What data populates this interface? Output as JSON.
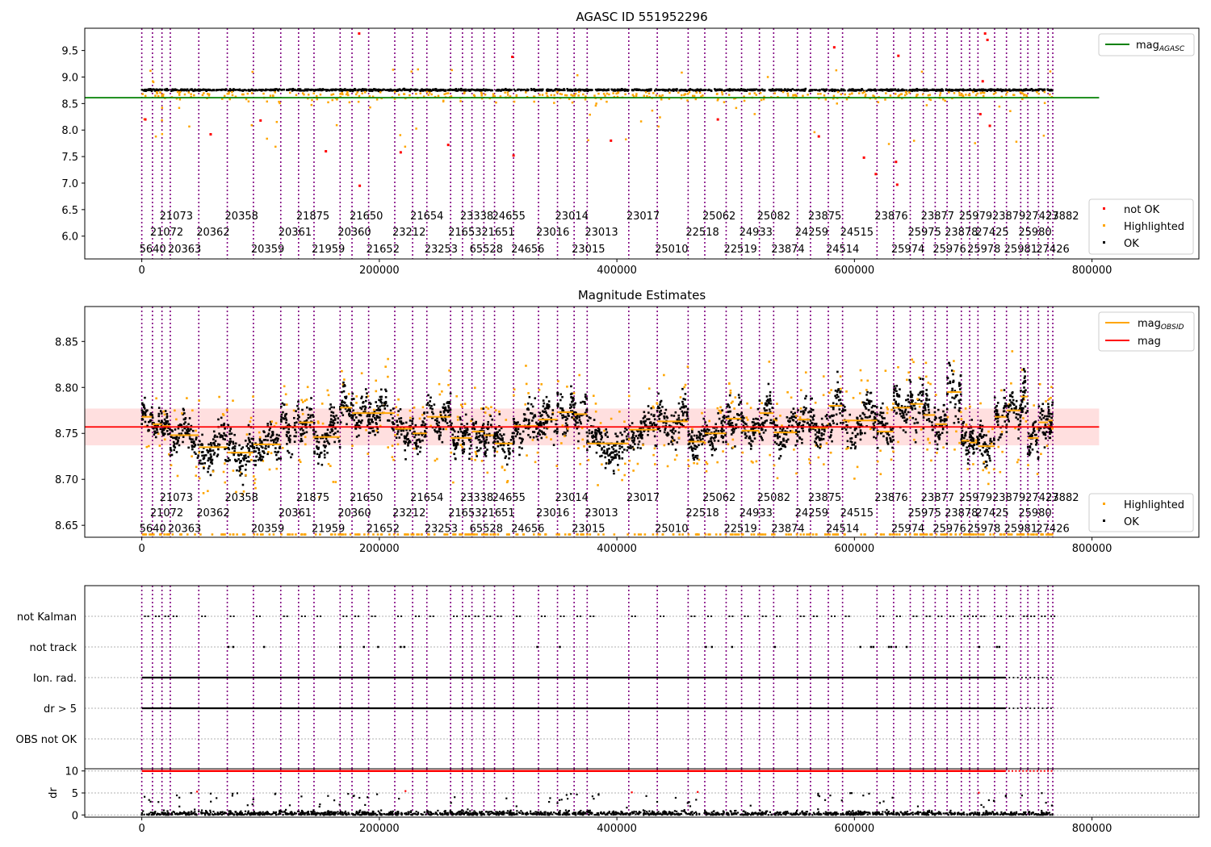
{
  "colors": {
    "not_ok": "#ff0000",
    "highlighted": "#ffa500",
    "ok": "#000000",
    "agasc_line": "#008000",
    "obsid_line": "#ffa500",
    "mag_line": "#ff0000",
    "band": "#ffc0c0",
    "vline": "#800080"
  },
  "chart_data": [
    {
      "type": "scatter",
      "title": "AGASC ID 551952296",
      "xlim": [
        -48000,
        890000
      ],
      "ylim": [
        5.57,
        9.92
      ],
      "xticks": [
        0,
        200000,
        400000,
        600000,
        800000
      ],
      "yticks": [
        6.0,
        6.5,
        7.0,
        7.5,
        8.0,
        8.5,
        9.0,
        9.5
      ],
      "yticklabels": [
        "6.0",
        "6.5",
        "7.0",
        "7.5",
        "8.0",
        "8.5",
        "9.0",
        "9.5"
      ],
      "legend_lines": [
        {
          "label": "mag",
          "subscript": "AGASC",
          "color": "#008000"
        }
      ],
      "legend_points": [
        {
          "label": "not OK",
          "color": "#ff0000"
        },
        {
          "label": "Highlighted",
          "color": "#ffa500"
        },
        {
          "label": "OK",
          "color": "#000000"
        }
      ],
      "legend_lines_placement": "upper right",
      "legend_points_placement": "lower right",
      "hline": {
        "name": "mag_AGASC",
        "y": 8.61,
        "x_end": 806000
      },
      "obs_label_rows": [
        6.39,
        6.09,
        5.77
      ],
      "ok_band": {
        "mean": 8.755,
        "spread": 0.03,
        "y_min": 8.66
      },
      "not_ok_points": [
        {
          "x": 3000,
          "y": 8.2
        },
        {
          "x": 58000,
          "y": 7.92
        },
        {
          "x": 100000,
          "y": 8.18
        },
        {
          "x": 155000,
          "y": 7.6
        },
        {
          "x": 183000,
          "y": 9.82
        },
        {
          "x": 183500,
          "y": 6.95
        },
        {
          "x": 218000,
          "y": 7.58
        },
        {
          "x": 258000,
          "y": 7.72
        },
        {
          "x": 312000,
          "y": 9.38
        },
        {
          "x": 313000,
          "y": 7.52
        },
        {
          "x": 395000,
          "y": 7.8
        },
        {
          "x": 485000,
          "y": 8.2
        },
        {
          "x": 570000,
          "y": 7.88
        },
        {
          "x": 583000,
          "y": 9.56
        },
        {
          "x": 608000,
          "y": 7.48
        },
        {
          "x": 618000,
          "y": 7.17
        },
        {
          "x": 635000,
          "y": 7.4
        },
        {
          "x": 636000,
          "y": 6.97
        },
        {
          "x": 637000,
          "y": 9.4
        },
        {
          "x": 706000,
          "y": 8.3
        },
        {
          "x": 708000,
          "y": 8.92
        },
        {
          "x": 710000,
          "y": 9.82
        },
        {
          "x": 712000,
          "y": 9.7
        },
        {
          "x": 714000,
          "y": 8.08
        }
      ]
    },
    {
      "type": "scatter",
      "title": "Magnitude Estimates",
      "xlim": [
        -48000,
        890000
      ],
      "ylim": [
        8.637,
        8.888
      ],
      "xticks": [
        0,
        200000,
        400000,
        600000,
        800000
      ],
      "yticks": [
        8.65,
        8.7,
        8.75,
        8.8,
        8.85
      ],
      "yticklabels": [
        "8.65",
        "8.70",
        "8.75",
        "8.80",
        "8.85"
      ],
      "legend_lines": [
        {
          "label": "mag",
          "subscript": "OBSID",
          "color": "#ffa500"
        },
        {
          "label": "mag",
          "subscript": "",
          "color": "#ff0000"
        }
      ],
      "legend_points": [
        {
          "label": "Highlighted",
          "color": "#ffa500"
        },
        {
          "label": "OK",
          "color": "#000000"
        }
      ],
      "legend_lines_placement": "upper right",
      "legend_points_placement": "lower right",
      "mag": 8.757,
      "mag_band": [
        8.737,
        8.777
      ],
      "obs_label_rows": [
        8.681,
        8.664,
        8.647
      ],
      "clip_low": 8.64,
      "clip_high": 8.874,
      "obsid_segments": [
        {
          "x0": 0,
          "x1": 9000,
          "mean": 8.768,
          "amp": 0.02
        },
        {
          "x0": 9000,
          "x1": 17000,
          "mean": 8.76,
          "amp": 0.02
        },
        {
          "x0": 17000,
          "x1": 24000,
          "mean": 8.758,
          "amp": 0.02
        },
        {
          "x0": 24000,
          "x1": 48000,
          "mean": 8.748,
          "amp": 0.025
        },
        {
          "x0": 48000,
          "x1": 72000,
          "mean": 8.735,
          "amp": 0.03
        },
        {
          "x0": 72000,
          "x1": 94000,
          "mean": 8.729,
          "amp": 0.03
        },
        {
          "x0": 94000,
          "x1": 117000,
          "mean": 8.738,
          "amp": 0.025
        },
        {
          "x0": 117000,
          "x1": 132000,
          "mean": 8.757,
          "amp": 0.03
        },
        {
          "x0": 132000,
          "x1": 145000,
          "mean": 8.762,
          "amp": 0.03
        },
        {
          "x0": 145000,
          "x1": 167000,
          "mean": 8.746,
          "amp": 0.035
        },
        {
          "x0": 167000,
          "x1": 177000,
          "mean": 8.778,
          "amp": 0.03
        },
        {
          "x0": 177000,
          "x1": 191000,
          "mean": 8.772,
          "amp": 0.03
        },
        {
          "x0": 191000,
          "x1": 213000,
          "mean": 8.772,
          "amp": 0.03
        },
        {
          "x0": 213000,
          "x1": 228000,
          "mean": 8.755,
          "amp": 0.025
        },
        {
          "x0": 228000,
          "x1": 240000,
          "mean": 8.75,
          "amp": 0.025
        },
        {
          "x0": 240000,
          "x1": 260000,
          "mean": 8.768,
          "amp": 0.03
        },
        {
          "x0": 260000,
          "x1": 270000,
          "mean": 8.745,
          "amp": 0.025
        },
        {
          "x0": 270000,
          "x1": 278000,
          "mean": 8.745,
          "amp": 0.025
        },
        {
          "x0": 278000,
          "x1": 288000,
          "mean": 8.752,
          "amp": 0.025
        },
        {
          "x0": 288000,
          "x1": 297000,
          "mean": 8.748,
          "amp": 0.025
        },
        {
          "x0": 297000,
          "x1": 313000,
          "mean": 8.739,
          "amp": 0.025
        },
        {
          "x0": 313000,
          "x1": 334000,
          "mean": 8.758,
          "amp": 0.03
        },
        {
          "x0": 334000,
          "x1": 350000,
          "mean": 8.765,
          "amp": 0.03
        },
        {
          "x0": 350000,
          "x1": 364000,
          "mean": 8.773,
          "amp": 0.03
        },
        {
          "x0": 364000,
          "x1": 375000,
          "mean": 8.771,
          "amp": 0.03
        },
        {
          "x0": 375000,
          "x1": 410000,
          "mean": 8.739,
          "amp": 0.03
        },
        {
          "x0": 410000,
          "x1": 434000,
          "mean": 8.754,
          "amp": 0.025
        },
        {
          "x0": 434000,
          "x1": 460000,
          "mean": 8.763,
          "amp": 0.03
        },
        {
          "x0": 460000,
          "x1": 474000,
          "mean": 8.741,
          "amp": 0.025
        },
        {
          "x0": 474000,
          "x1": 492000,
          "mean": 8.75,
          "amp": 0.025
        },
        {
          "x0": 492000,
          "x1": 505000,
          "mean": 8.766,
          "amp": 0.03
        },
        {
          "x0": 505000,
          "x1": 520000,
          "mean": 8.753,
          "amp": 0.025
        },
        {
          "x0": 520000,
          "x1": 532000,
          "mean": 8.772,
          "amp": 0.03
        },
        {
          "x0": 532000,
          "x1": 552000,
          "mean": 8.751,
          "amp": 0.03
        },
        {
          "x0": 552000,
          "x1": 563000,
          "mean": 8.765,
          "amp": 0.03
        },
        {
          "x0": 563000,
          "x1": 578000,
          "mean": 8.756,
          "amp": 0.03
        },
        {
          "x0": 578000,
          "x1": 590000,
          "mean": 8.78,
          "amp": 0.035
        },
        {
          "x0": 590000,
          "x1": 619000,
          "mean": 8.764,
          "amp": 0.035
        },
        {
          "x0": 619000,
          "x1": 633000,
          "mean": 8.752,
          "amp": 0.03
        },
        {
          "x0": 633000,
          "x1": 647000,
          "mean": 8.778,
          "amp": 0.03
        },
        {
          "x0": 647000,
          "x1": 658000,
          "mean": 8.782,
          "amp": 0.03
        },
        {
          "x0": 658000,
          "x1": 668000,
          "mean": 8.77,
          "amp": 0.03
        },
        {
          "x0": 668000,
          "x1": 678000,
          "mean": 8.76,
          "amp": 0.03
        },
        {
          "x0": 678000,
          "x1": 690000,
          "mean": 8.795,
          "amp": 0.04
        },
        {
          "x0": 690000,
          "x1": 697000,
          "mean": 8.742,
          "amp": 0.025
        },
        {
          "x0": 697000,
          "x1": 704000,
          "mean": 8.74,
          "amp": 0.025
        },
        {
          "x0": 704000,
          "x1": 718000,
          "mean": 8.736,
          "amp": 0.025
        },
        {
          "x0": 718000,
          "x1": 728000,
          "mean": 8.768,
          "amp": 0.03
        },
        {
          "x0": 728000,
          "x1": 740000,
          "mean": 8.775,
          "amp": 0.03
        },
        {
          "x0": 740000,
          "x1": 746000,
          "mean": 8.79,
          "amp": 0.035
        },
        {
          "x0": 746000,
          "x1": 755000,
          "mean": 8.745,
          "amp": 0.025
        },
        {
          "x0": 755000,
          "x1": 763000,
          "mean": 8.762,
          "amp": 0.025
        },
        {
          "x0": 763000,
          "x1": 767000,
          "mean": 8.764,
          "amp": 0.025
        }
      ]
    },
    {
      "type": "scatter",
      "title": "",
      "xlim": [
        -48000,
        890000
      ],
      "categories": [
        "not Kalman",
        "not track",
        "Ion. rad.",
        "dr > 5",
        "OBS not OK"
      ],
      "ion_rad_end": 727000,
      "not_track_x": [
        73000,
        77000,
        103000,
        167000,
        187000,
        199000,
        218000,
        221000,
        333000,
        352000,
        475000,
        480000,
        497000,
        533000,
        605000,
        614000,
        616000,
        629000,
        631000,
        635000,
        644000,
        705000,
        720000,
        722000
      ]
    },
    {
      "type": "scatter",
      "title": "",
      "ylabel": "dr",
      "xlim": [
        -48000,
        890000
      ],
      "ylim": [
        -0.5,
        10.5
      ],
      "xticks": [
        0,
        200000,
        400000,
        600000,
        800000
      ],
      "yticks": [
        0,
        5,
        10
      ],
      "yticklabels": [
        "0",
        "5",
        "10"
      ],
      "dr_clip": 10,
      "dr_threshold": 5
    }
  ],
  "obsids": [
    {
      "x": 0,
      "label": "5640",
      "row": 2
    },
    {
      "x": 9000,
      "label": "21072",
      "row": 1
    },
    {
      "x": 17000,
      "label": "21073",
      "row": 0
    },
    {
      "x": 24000,
      "label": "20363",
      "row": 2
    },
    {
      "x": 48000,
      "label": "20362",
      "row": 1
    },
    {
      "x": 72000,
      "label": "20358",
      "row": 0
    },
    {
      "x": 94000,
      "label": "20359",
      "row": 2
    },
    {
      "x": 117000,
      "label": "20361",
      "row": 1
    },
    {
      "x": 132000,
      "label": "21875",
      "row": 0
    },
    {
      "x": 145000,
      "label": "21959",
      "row": 2
    },
    {
      "x": 167000,
      "label": "20360",
      "row": 1
    },
    {
      "x": 177000,
      "label": "21650",
      "row": 0
    },
    {
      "x": 191000,
      "label": "21652",
      "row": 2
    },
    {
      "x": 213000,
      "label": "23212",
      "row": 1
    },
    {
      "x": 228000,
      "label": "21654",
      "row": 0
    },
    {
      "x": 240000,
      "label": "23253",
      "row": 2
    },
    {
      "x": 260000,
      "label": "21653",
      "row": 1
    },
    {
      "x": 270000,
      "label": "23338",
      "row": 0
    },
    {
      "x": 278000,
      "label": "65528",
      "row": 2
    },
    {
      "x": 288000,
      "label": "21651",
      "row": 1
    },
    {
      "x": 297000,
      "label": "24655",
      "row": 0
    },
    {
      "x": 313000,
      "label": "24656",
      "row": 2
    },
    {
      "x": 334000,
      "label": "23016",
      "row": 1
    },
    {
      "x": 350000,
      "label": "23014",
      "row": 0
    },
    {
      "x": 364000,
      "label": "23015",
      "row": 2
    },
    {
      "x": 375000,
      "label": "23013",
      "row": 1
    },
    {
      "x": 410000,
      "label": "23017",
      "row": 0
    },
    {
      "x": 434000,
      "label": "25010",
      "row": 2
    },
    {
      "x": 460000,
      "label": "22518",
      "row": 1
    },
    {
      "x": 474000,
      "label": "25062",
      "row": 0
    },
    {
      "x": 492000,
      "label": "22519",
      "row": 2
    },
    {
      "x": 505000,
      "label": "24933",
      "row": 1
    },
    {
      "x": 520000,
      "label": "25082",
      "row": 0
    },
    {
      "x": 532000,
      "label": "23874",
      "row": 2
    },
    {
      "x": 552000,
      "label": "24259",
      "row": 1
    },
    {
      "x": 563000,
      "label": "23875",
      "row": 0
    },
    {
      "x": 578000,
      "label": "24514",
      "row": 2
    },
    {
      "x": 590000,
      "label": "24515",
      "row": 1
    },
    {
      "x": 619000,
      "label": "23876",
      "row": 0
    },
    {
      "x": 633000,
      "label": "25974",
      "row": 2
    },
    {
      "x": 647000,
      "label": "25975",
      "row": 1
    },
    {
      "x": 658000,
      "label": "23877",
      "row": 0
    },
    {
      "x": 668000,
      "label": "25976",
      "row": 2
    },
    {
      "x": 678000,
      "label": "23878",
      "row": 1
    },
    {
      "x": 690000,
      "label": "25979",
      "row": 0
    },
    {
      "x": 697000,
      "label": "25978",
      "row": 2
    },
    {
      "x": 704000,
      "label": "27425",
      "row": 1
    },
    {
      "x": 718000,
      "label": "23879",
      "row": 0
    },
    {
      "x": 728000,
      "label": "25981",
      "row": 2
    },
    {
      "x": 740000,
      "label": "25980",
      "row": 1
    },
    {
      "x": 746000,
      "label": "27427",
      "row": 0
    },
    {
      "x": 755000,
      "label": "27426",
      "row": 2
    },
    {
      "x": 763000,
      "label": "23882",
      "row": 0
    }
  ]
}
